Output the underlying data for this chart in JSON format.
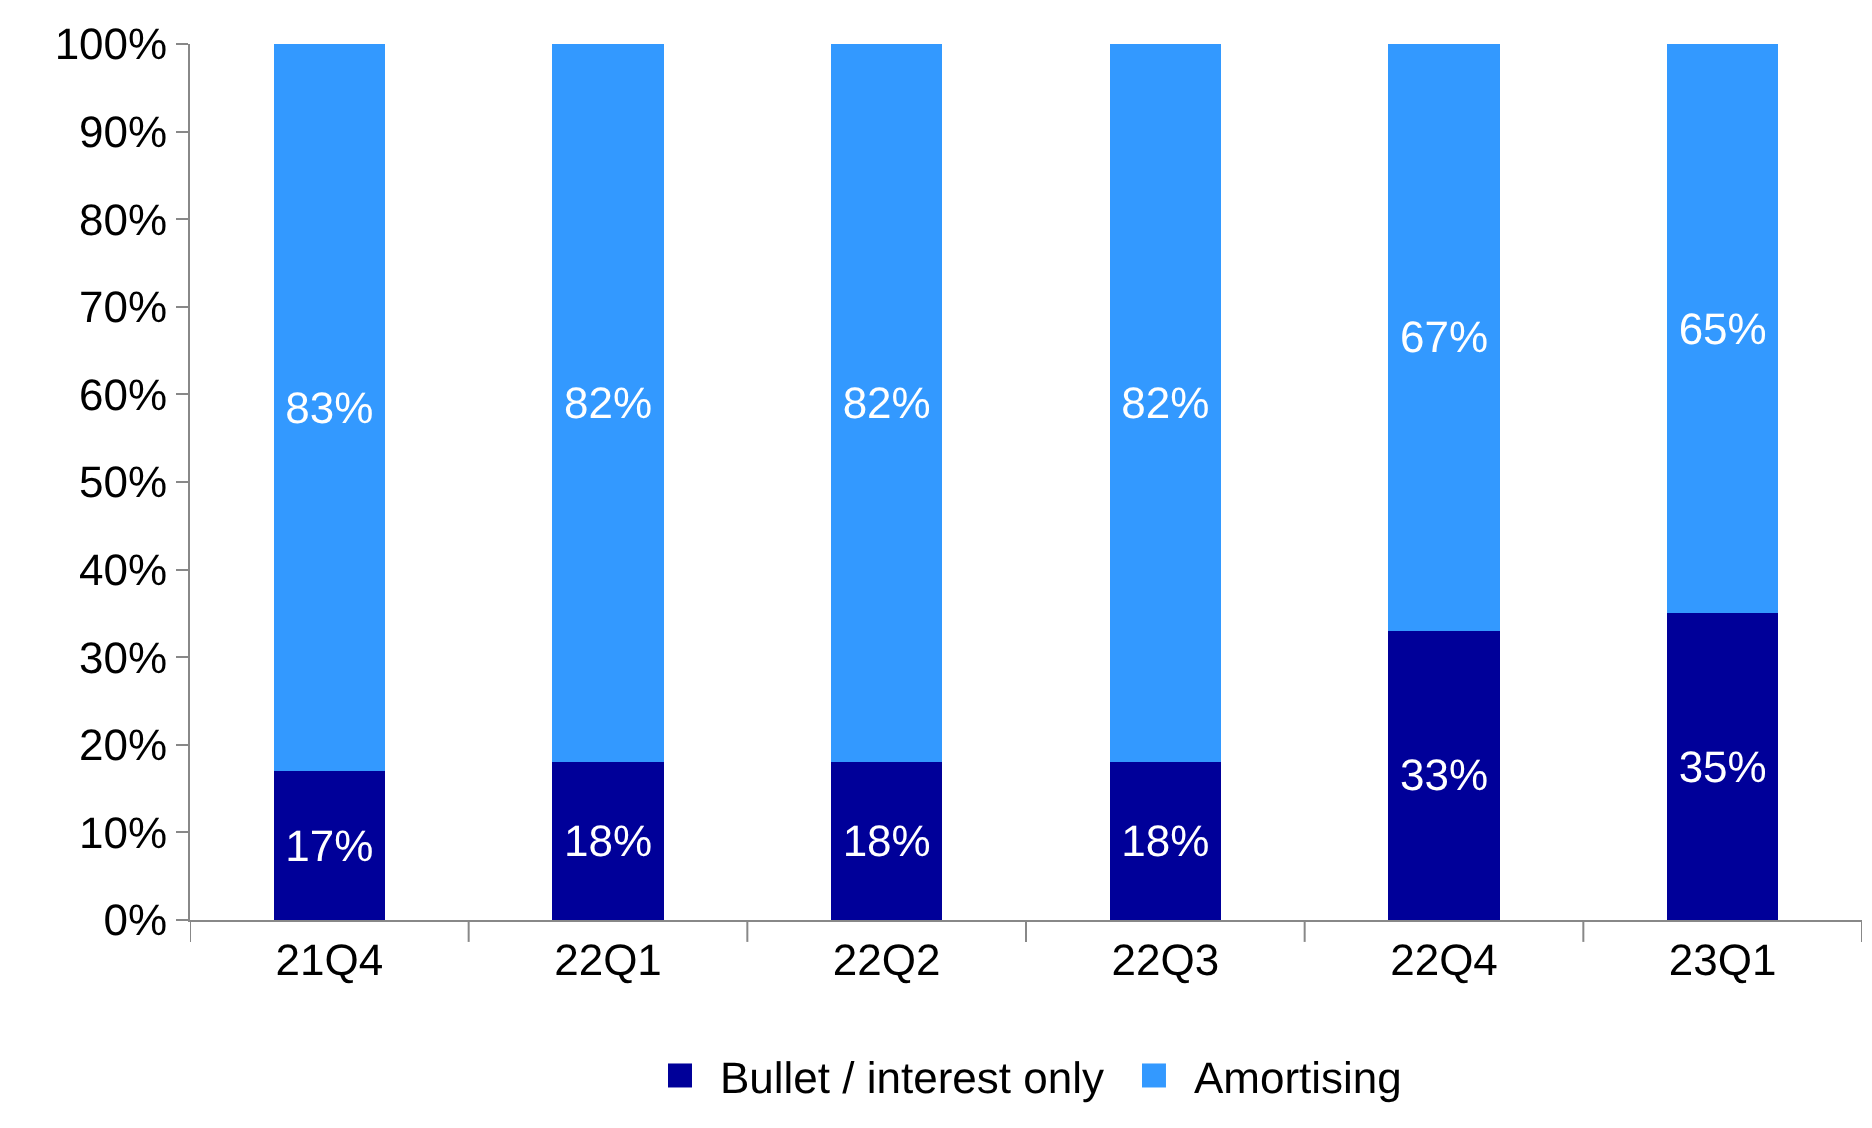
{
  "chart_data": {
    "type": "bar",
    "stacked": true,
    "categories": [
      "21Q4",
      "22Q1",
      "22Q2",
      "22Q3",
      "22Q4",
      "23Q1"
    ],
    "series": [
      {
        "name": "Bullet / interest only",
        "color": "#000099",
        "values": [
          17,
          18,
          18,
          18,
          33,
          35
        ],
        "value_labels": [
          "17%",
          "18%",
          "18%",
          "18%",
          "33%",
          "35%"
        ]
      },
      {
        "name": "Amortising",
        "color": "#3399ff",
        "values": [
          83,
          82,
          82,
          82,
          67,
          65
        ],
        "value_labels": [
          "83%",
          "82%",
          "82%",
          "82%",
          "67%",
          "65%"
        ]
      }
    ],
    "ylim": [
      0,
      100
    ],
    "yticks": [
      {
        "value": 0,
        "label": "0%"
      },
      {
        "value": 10,
        "label": "10%"
      },
      {
        "value": 20,
        "label": "20%"
      },
      {
        "value": 30,
        "label": "30%"
      },
      {
        "value": 40,
        "label": "40%"
      },
      {
        "value": 50,
        "label": "50%"
      },
      {
        "value": 60,
        "label": "60%"
      },
      {
        "value": 70,
        "label": "70%"
      },
      {
        "value": 80,
        "label": "80%"
      },
      {
        "value": 90,
        "label": "90%"
      },
      {
        "value": 100,
        "label": "100%"
      }
    ],
    "legend": "bottom"
  }
}
